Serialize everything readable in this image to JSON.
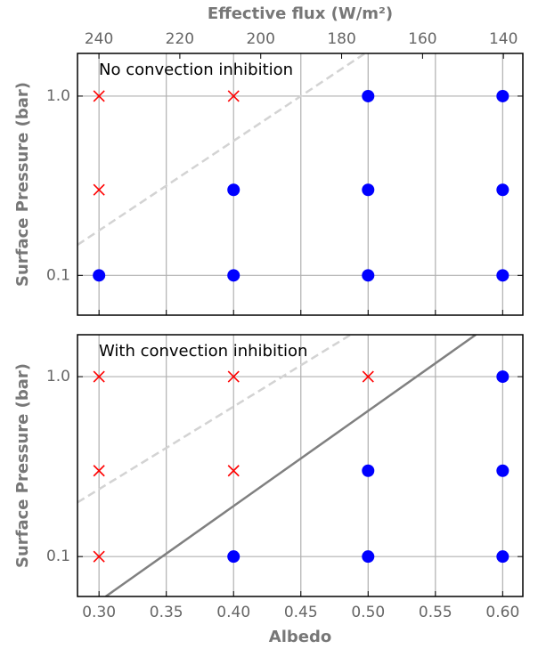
{
  "chart_data": [
    {
      "type": "scatter",
      "annotation": "No convection inhibition",
      "ylabel": "Surface Pressure (bar)",
      "x2label": "Effective flux (W/m²)",
      "x2lim": [
        245.3,
        135.2
      ],
      "x2ticks": [
        240,
        220,
        200,
        180,
        160,
        140
      ],
      "xlim": [
        0.284,
        0.615
      ],
      "xticks": [
        {
          "value": 0.3,
          "label": "0.30"
        },
        {
          "value": 0.35,
          "label": "0.35"
        },
        {
          "value": 0.4,
          "label": "0.40"
        },
        {
          "value": 0.45,
          "label": "0.45"
        },
        {
          "value": 0.5,
          "label": "0.50"
        },
        {
          "value": 0.55,
          "label": "0.55"
        },
        {
          "value": 0.6,
          "label": "0.60"
        }
      ],
      "ylim": [
        0.06,
        1.73
      ],
      "ylog": true,
      "yticks": [
        0.1,
        {
          "value": 1,
          "label": "1.0"
        }
      ],
      "grid": true,
      "series": [
        {
          "color": "#ff0000",
          "marker": "x",
          "x": [
            0.3,
            0.3,
            0.4
          ],
          "y": [
            1,
            0.3,
            1
          ]
        },
        {
          "color": "#0000ff",
          "marker": "o",
          "x": [
            0.3,
            0.4,
            0.4,
            0.5,
            0.5,
            0.5,
            0.6,
            0.6,
            0.6
          ],
          "y": [
            0.1,
            0.3,
            0.1,
            1,
            0.3,
            0.1,
            1,
            0.3,
            0.1
          ]
        },
        {
          "color": "#d3d3d3",
          "linestyle": "dashed",
          "x": [
            0.284,
            0.4976
          ],
          "y": [
            0.148,
            1.73
          ]
        }
      ]
    },
    {
      "type": "scatter",
      "annotation": "With convection inhibition",
      "ylabel": "Surface Pressure (bar)",
      "xlabel": "Albedo",
      "xlim": [
        0.284,
        0.615
      ],
      "xticks": [
        {
          "value": 0.3,
          "label": "0.30"
        },
        {
          "value": 0.35,
          "label": "0.35"
        },
        {
          "value": 0.4,
          "label": "0.40"
        },
        {
          "value": 0.45,
          "label": "0.45"
        },
        {
          "value": 0.5,
          "label": "0.50"
        },
        {
          "value": 0.55,
          "label": "0.55"
        },
        {
          "value": 0.6,
          "label": "0.60"
        }
      ],
      "ylim": [
        0.06,
        1.71
      ],
      "ylog": true,
      "yticks": [
        0.1,
        {
          "value": 1,
          "label": "1.0"
        }
      ],
      "grid": true,
      "series": [
        {
          "color": "#ff0000",
          "marker": "x",
          "x": [
            0.3,
            0.3,
            0.3,
            0.4,
            0.4,
            0.5
          ],
          "y": [
            1,
            0.3,
            0.1,
            1,
            0.3,
            1
          ]
        },
        {
          "color": "#0000ff",
          "marker": "o",
          "x": [
            0.4,
            0.5,
            0.5,
            0.6,
            0.6,
            0.6
          ],
          "y": [
            0.1,
            0.3,
            0.1,
            1,
            0.3,
            0.1
          ]
        },
        {
          "color": "#d3d3d3",
          "linestyle": "dashed",
          "x": [
            0.284,
            0.487
          ],
          "y": [
            0.2,
            1.71
          ]
        },
        {
          "color": "#808080",
          "linestyle": "solid",
          "x": [
            0.305,
            0.58
          ],
          "y": [
            0.06,
            1.71
          ]
        }
      ]
    }
  ]
}
